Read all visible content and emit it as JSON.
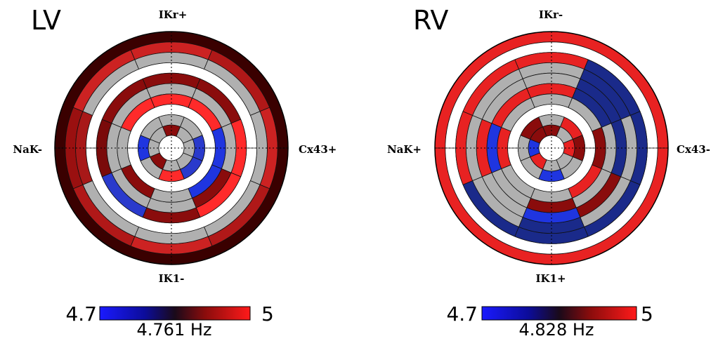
{
  "chart_data": [
    {
      "type": "polar-ring",
      "title": "LV",
      "labels": {
        "top": "IKr+",
        "right": "Cx43+",
        "bottom": "IK1-",
        "left": "NaK-"
      },
      "colorbar": {
        "min": "4.7",
        "max": "5",
        "min_value": 4.7,
        "max_value": 5.0
      },
      "value_label": "4.761 Hz",
      "grid": true,
      "ring_colors_outer_to_inner": [
        [
          "#3a0000"
        ],
        [
          "#cc2222",
          "#b01818",
          "#cc2222",
          "#b01818",
          "#cc2222",
          "#b01818",
          "#9a1010",
          "#cc2222"
        ],
        [
          "#b0b0b0",
          "#b0b0b0",
          "#b0b0b0",
          "#b0b0b0",
          "#b0b0b0",
          "#b0b0b0",
          "#a81818",
          "#b0b0b0"
        ],
        [
          "#ffffff"
        ],
        [
          "#8a0c0c",
          "#8a0c0c",
          "#ff2a2a",
          "#ff2a2a",
          "#8a0c0c",
          "#2a3acc",
          "#7a0a0a",
          "#8a0c0c"
        ],
        [
          "#b0b0b0",
          "#b0b0b0",
          "#b0b0b0",
          "#8a0c0c",
          "#b0b0b0",
          "#b0b0b0",
          "#b0b0b0",
          "#b0b0b0"
        ],
        [
          "#ff2a2a",
          "#ff2a2a",
          "#1f35e0",
          "#1f35e0",
          "#b0b0b0",
          "#8a0c0c",
          "#b0b0b0",
          "#ff2a2a"
        ],
        [
          "#ffffff"
        ],
        [
          "#b0b0b0",
          "#b0b0b0",
          "#2a3acc",
          "#2a3acc",
          "#ff2a2a",
          "#b0b0b0",
          "#1f35e0",
          "#b0b0b0"
        ],
        [
          "#8a0c0c",
          "#b0b0b0",
          "#b0b0b0",
          "#b0b0b0",
          "#b0b0b0",
          "#8a0c0c",
          "#b0b0b0",
          "#b0b0b0"
        ]
      ]
    },
    {
      "type": "polar-ring",
      "title": "RV",
      "labels": {
        "top": "IKr-",
        "right": "Cx43-",
        "bottom": "IK1+",
        "left": "NaK+"
      },
      "colorbar": {
        "min": "4.7",
        "max": "5",
        "min_value": 4.7,
        "max_value": 5.0
      },
      "value_label": "4.828 Hz",
      "grid": true,
      "ring_colors_outer_to_inner": [
        [
          "#e82222"
        ],
        [
          "#ffffff"
        ],
        [
          "#e82222",
          "#1a2a8a",
          "#1a2a8a",
          "#1a2a8a",
          "#1a2a8a",
          "#1a2a8a",
          "#e82222",
          "#e82222"
        ],
        [
          "#b0b0b0",
          "#1a2a8a",
          "#b0b0b0",
          "#b0b0b0",
          "#1a2a8a",
          "#b0b0b0",
          "#b0b0b0",
          "#b0b0b0"
        ],
        [
          "#b0b0b0",
          "#1a2a8a",
          "#1a2a8a",
          "#8a0c0c",
          "#1f35e0",
          "#b0b0b0",
          "#e82222",
          "#b0b0b0"
        ],
        [
          "#e82222",
          "#1a2a8a",
          "#b0b0b0",
          "#b0b0b0",
          "#8a0c0c",
          "#b0b0b0",
          "#1f35e0",
          "#e82222"
        ],
        [
          "#b0b0b0",
          "#b0b0b0",
          "#8a0c0c",
          "#e82222",
          "#b0b0b0",
          "#b0b0b0",
          "#e82222",
          "#b0b0b0"
        ],
        [
          "#ffffff"
        ],
        [
          "#b0b0b0",
          "#e82222",
          "#8a0c0c",
          "#b0b0b0",
          "#1f35e0",
          "#b0b0b0",
          "#b0b0b0",
          "#8a0c0c"
        ],
        [
          "#8a0c0c",
          "#b0b0b0",
          "#e82222",
          "#b0b0b0",
          "#b0b0b0",
          "#e82222",
          "#1f35e0",
          "#8a0c0c"
        ]
      ]
    }
  ]
}
